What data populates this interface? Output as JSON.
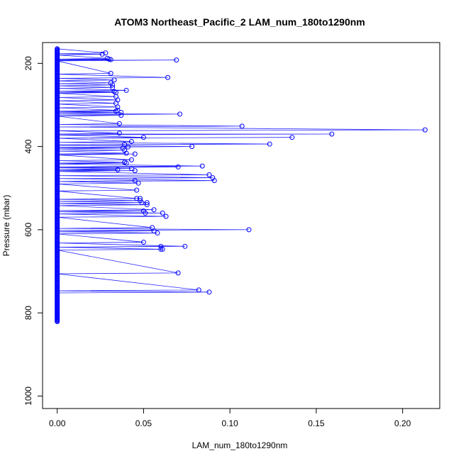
{
  "chart_data": {
    "type": "line",
    "title": "ATOM3 Northeast_Pacific_2 LAM_num_180to1290nm",
    "xlabel": "LAM_num_180to1290nm",
    "ylabel": "Pressure (mbar)",
    "xlim": [
      -0.0085,
      0.2215
    ],
    "ylim": [
      1030,
      150
    ],
    "y_reversed": true,
    "xticks": [
      0.0,
      0.05,
      0.1,
      0.15,
      0.2
    ],
    "xtick_labels": [
      "0.00",
      "0.05",
      "0.10",
      "0.15",
      "0.20"
    ],
    "yticks": [
      200,
      400,
      600,
      800,
      1000
    ],
    "ytick_labels": [
      "200",
      "400",
      "600",
      "800",
      "1000"
    ],
    "grid": false,
    "line_color": "#0000ff",
    "points": [
      {
        "x": 0.028,
        "y": 175
      },
      {
        "x": 0.026,
        "y": 178
      },
      {
        "x": 0.029,
        "y": 188
      },
      {
        "x": 0.03,
        "y": 190
      },
      {
        "x": 0.031,
        "y": 191
      },
      {
        "x": 0.069,
        "y": 192
      },
      {
        "x": 0.031,
        "y": 224
      },
      {
        "x": 0.064,
        "y": 234
      },
      {
        "x": 0.033,
        "y": 240
      },
      {
        "x": 0.031,
        "y": 247
      },
      {
        "x": 0.032,
        "y": 252
      },
      {
        "x": 0.032,
        "y": 258
      },
      {
        "x": 0.04,
        "y": 265
      },
      {
        "x": 0.033,
        "y": 268
      },
      {
        "x": 0.034,
        "y": 270
      },
      {
        "x": 0.034,
        "y": 280
      },
      {
        "x": 0.035,
        "y": 288
      },
      {
        "x": 0.034,
        "y": 296
      },
      {
        "x": 0.035,
        "y": 305
      },
      {
        "x": 0.035,
        "y": 313
      },
      {
        "x": 0.034,
        "y": 315
      },
      {
        "x": 0.037,
        "y": 318
      },
      {
        "x": 0.037,
        "y": 325
      },
      {
        "x": 0.071,
        "y": 322
      },
      {
        "x": 0.036,
        "y": 345
      },
      {
        "x": 0.107,
        "y": 351
      },
      {
        "x": 0.213,
        "y": 360
      },
      {
        "x": 0.036,
        "y": 368
      },
      {
        "x": 0.159,
        "y": 370
      },
      {
        "x": 0.05,
        "y": 378
      },
      {
        "x": 0.136,
        "y": 378
      },
      {
        "x": 0.043,
        "y": 388
      },
      {
        "x": 0.123,
        "y": 394
      },
      {
        "x": 0.039,
        "y": 395
      },
      {
        "x": 0.078,
        "y": 400
      },
      {
        "x": 0.041,
        "y": 401
      },
      {
        "x": 0.038,
        "y": 404
      },
      {
        "x": 0.039,
        "y": 409
      },
      {
        "x": 0.04,
        "y": 416
      },
      {
        "x": 0.045,
        "y": 418
      },
      {
        "x": 0.043,
        "y": 432
      },
      {
        "x": 0.039,
        "y": 438
      },
      {
        "x": 0.04,
        "y": 440
      },
      {
        "x": 0.084,
        "y": 447
      },
      {
        "x": 0.07,
        "y": 449
      },
      {
        "x": 0.043,
        "y": 453
      },
      {
        "x": 0.035,
        "y": 456
      },
      {
        "x": 0.045,
        "y": 458
      },
      {
        "x": 0.088,
        "y": 468
      },
      {
        "x": 0.09,
        "y": 475
      },
      {
        "x": 0.091,
        "y": 482
      },
      {
        "x": 0.045,
        "y": 482
      },
      {
        "x": 0.047,
        "y": 488
      },
      {
        "x": 0.046,
        "y": 505
      },
      {
        "x": 0.046,
        "y": 525
      },
      {
        "x": 0.048,
        "y": 525
      },
      {
        "x": 0.048,
        "y": 530
      },
      {
        "x": 0.049,
        "y": 535
      },
      {
        "x": 0.052,
        "y": 535
      },
      {
        "x": 0.052,
        "y": 540
      },
      {
        "x": 0.056,
        "y": 552
      },
      {
        "x": 0.05,
        "y": 555
      },
      {
        "x": 0.061,
        "y": 560
      },
      {
        "x": 0.051,
        "y": 560
      },
      {
        "x": 0.063,
        "y": 568
      },
      {
        "x": 0.055,
        "y": 595
      },
      {
        "x": 0.111,
        "y": 600
      },
      {
        "x": 0.056,
        "y": 603
      },
      {
        "x": 0.058,
        "y": 608
      },
      {
        "x": 0.05,
        "y": 630
      },
      {
        "x": 0.074,
        "y": 640
      },
      {
        "x": 0.06,
        "y": 640
      },
      {
        "x": 0.06,
        "y": 647
      },
      {
        "x": 0.061,
        "y": 647
      },
      {
        "x": 0.07,
        "y": 704
      },
      {
        "x": 0.082,
        "y": 745
      },
      {
        "x": 0.088,
        "y": 750
      }
    ],
    "zero_range": [
      165,
      822
    ]
  }
}
